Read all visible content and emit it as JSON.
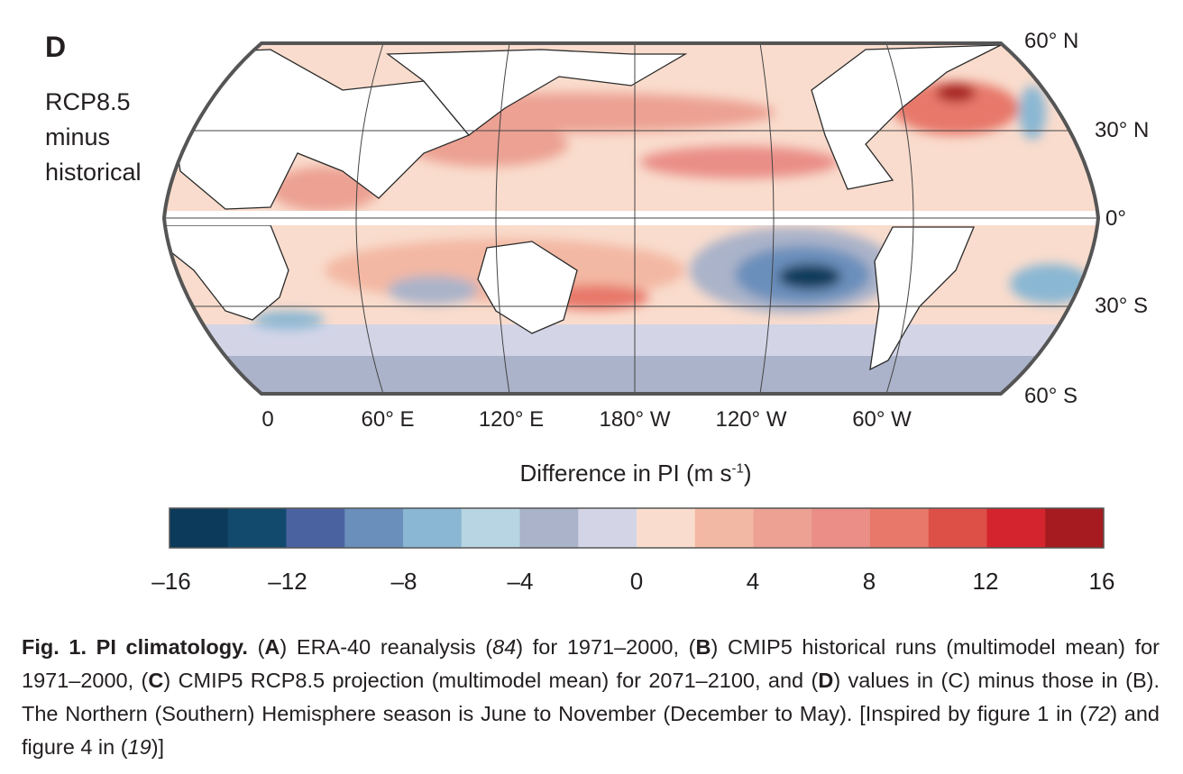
{
  "panel": {
    "letter": "D",
    "subtitle_lines": [
      "RCP8.5",
      "minus",
      "historical"
    ]
  },
  "latitude_labels": [
    "60° N",
    "30° N",
    "0°",
    "30° S",
    "60° S"
  ],
  "longitude_labels": [
    "0",
    "60° E",
    "120° E",
    "180° W",
    "120° W",
    "60° W"
  ],
  "colorbar": {
    "title_main": "Difference in PI (m s",
    "title_sup": "-1",
    "title_end": ")",
    "ticks": [
      "–16",
      "–12",
      "–8",
      "–4",
      "0",
      "4",
      "8",
      "12",
      "16"
    ],
    "range": [
      -16,
      16
    ],
    "bin_width": 2,
    "colors": [
      "#0c3a5a",
      "#124a6e",
      "#4a63a0",
      "#6b8fbb",
      "#8ab7d3",
      "#b7d5e2",
      "#aab3c9",
      "#d3d5e7",
      "#f9dccd",
      "#f3b8a3",
      "#eca193",
      "#ea8e87",
      "#e7786a",
      "#dd5048",
      "#d4242d",
      "#a51b1f"
    ]
  },
  "caption": {
    "fig_label": "Fig. 1. PI climatology.",
    "text_1": " (",
    "A": "A",
    "text_2": ") ERA-40 reanalysis (",
    "ref_84": "84",
    "text_3": ") for 1971–2000, (",
    "B": "B",
    "text_4": ") CMIP5 historical runs (multimodel mean) for 1971–2000, (",
    "C": "C",
    "text_5": ") CMIP5 RCP8.5 projection (multimodel mean) for 2071–2100, and (",
    "D": "D",
    "text_6": ") values in (C) minus those in (B). The Northern (Southern) Hemisphere season is June to November (December to May). [Inspired by figure 1 in (",
    "ref_72": "72",
    "text_7": ") and figure 4 in (",
    "ref_19": "19",
    "text_8": ")]"
  }
}
